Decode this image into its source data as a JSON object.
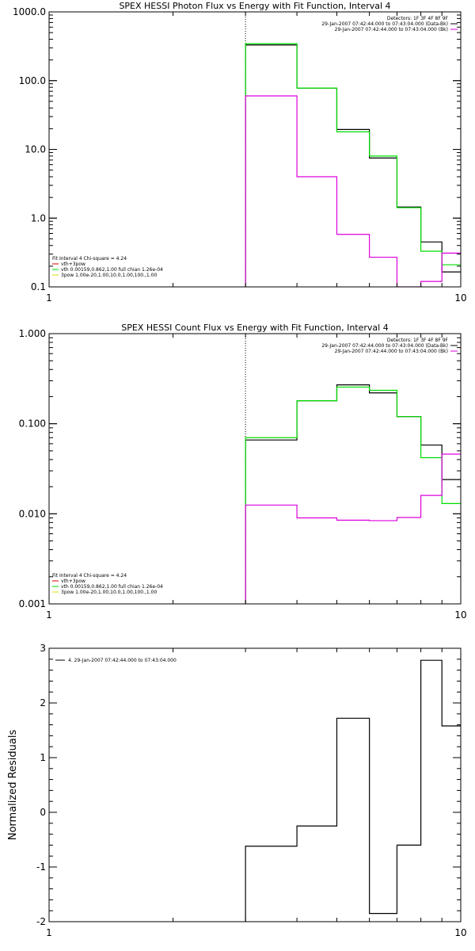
{
  "chart_data": [
    {
      "type": "line",
      "title": "SPEX HESSI Photon Flux vs Energy with Fit Function, Interval 4",
      "xlabel": "",
      "ylabel": "",
      "xscale": "log",
      "yscale": "log",
      "xlim": [
        1,
        10
      ],
      "ylim": [
        0.1,
        1000
      ],
      "x_ticks": [
        "1",
        "10"
      ],
      "y_ticks": [
        "0.1",
        "1.0",
        "10.0",
        "100.0",
        "1000.0"
      ],
      "vline": 3.0,
      "legend_top": {
        "lines": [
          "Detectors: 1F 3F 4F 8F 9F",
          "29-Jan-2007 07:42:44.000 to 07:43:04.000 (Data-Bk)",
          "29-Jan-2007 07:42:44.000 to 07:43:04.000 (Bk)"
        ],
        "placement": "top-right"
      },
      "legend_bottom": {
        "title": "Fit Interval 4   Chi-square = 4.24",
        "entries": [
          "vth+3pow",
          "vth 0.00159,0.862,1.00  full chian 1.26e-04",
          "3pow 1.00e-20,1.00,10.0,1.00,100.,1.00"
        ],
        "placement": "bottom-left"
      },
      "edges": [
        3.0,
        4.0,
        5.0,
        6.0,
        7.0,
        8.0,
        9.0,
        10.0
      ],
      "series": [
        {
          "name": "29-Jan-2007 07:42:44.000 to 07:43:04.000 (Data-Bk)",
          "color": "#000000",
          "values": [
            330,
            78,
            19.5,
            7.5,
            1.45,
            0.45,
            0.165
          ]
        },
        {
          "name": "vth 0.00159,0.862,1.00  full chian 1.26e-04",
          "color": "#00dd00",
          "values": [
            345,
            78,
            18,
            8.0,
            1.42,
            0.33,
            0.21
          ]
        },
        {
          "name": "29-Jan-2007 07:42:44.000 to 07:43:04.000 (Bk)",
          "color": "#dd00dd",
          "values": [
            60,
            4.0,
            0.58,
            0.27,
            0.1,
            0.12,
            0.31
          ]
        }
      ]
    },
    {
      "type": "line",
      "title": "SPEX HESSI Count Flux vs Energy with Fit Function, Interval 4",
      "xlabel": "",
      "ylabel": "",
      "xscale": "log",
      "yscale": "log",
      "xlim": [
        1,
        10
      ],
      "ylim": [
        0.001,
        1.0
      ],
      "x_ticks": [
        "1",
        "10"
      ],
      "y_ticks": [
        "0.001",
        "0.010",
        "0.100",
        "1.000"
      ],
      "vline": 3.0,
      "legend_top": {
        "lines": [
          "Detectors: 1F 3F 4F 8F 9F",
          "29-Jan-2007 07:42:44.000 to 07:43:04.000 (Data-Bk)",
          "29-Jan-2007 07:42:44.000 to 07:43:04.000 (Bk)"
        ],
        "placement": "top-right"
      },
      "legend_bottom": {
        "title": "Fit Interval 4   Chi-square = 4.24",
        "entries": [
          "vth+3pow",
          "vth 0.00159,0.862,1.00  full chian 1.26e-04",
          "3pow 1.00e-20,1.00,10.0,1.00,100.,1.00"
        ],
        "placement": "bottom-left"
      },
      "edges": [
        3.0,
        4.0,
        5.0,
        6.0,
        7.0,
        8.0,
        9.0,
        10.0
      ],
      "series": [
        {
          "name": "29-Jan-2007 07:42:44.000 to 07:43:04.000 (Data-Bk)",
          "color": "#000000",
          "values": [
            0.066,
            0.18,
            0.27,
            0.22,
            0.12,
            0.058,
            0.024
          ]
        },
        {
          "name": "vth 0.00159,0.862,1.00  full chian 1.26e-04",
          "color": "#00dd00",
          "values": [
            0.07,
            0.18,
            0.255,
            0.235,
            0.12,
            0.042,
            0.013
          ]
        },
        {
          "name": "29-Jan-2007 07:42:44.000 to 07:43:04.000 (Bk)",
          "color": "#dd00dd",
          "values": [
            0.0125,
            0.009,
            0.0085,
            0.0084,
            0.0091,
            0.016,
            0.046
          ]
        }
      ]
    },
    {
      "type": "line",
      "title": "",
      "xlabel": "",
      "ylabel": "Normalized Residuals",
      "xscale": "log",
      "yscale": "linear",
      "xlim": [
        1,
        10
      ],
      "ylim": [
        -2,
        3
      ],
      "x_ticks": [
        "1",
        "10"
      ],
      "y_ticks": [
        "-2",
        "-1",
        "0",
        "1",
        "2",
        "3"
      ],
      "legend_top": {
        "lines": [
          "4. 29-Jan-2007 07:42:44.000 to 07:43:04.000"
        ],
        "placement": "top-left"
      },
      "edges": [
        3.0,
        4.0,
        5.0,
        6.0,
        7.0,
        8.0,
        9.0,
        10.0
      ],
      "series": [
        {
          "name": "4. 29-Jan-2007 07:42:44.000 to 07:43:04.000",
          "color": "#000000",
          "values": [
            -0.62,
            -0.25,
            1.72,
            -1.85,
            -0.6,
            2.78,
            1.58
          ]
        }
      ]
    }
  ]
}
